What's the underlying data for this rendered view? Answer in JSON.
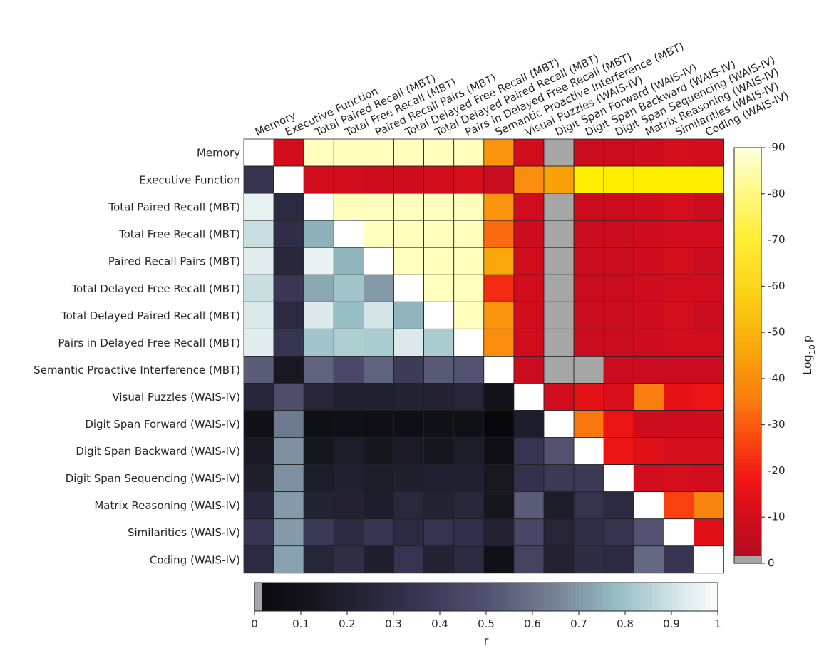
{
  "chart_data": {
    "type": "heatmap",
    "labels": [
      "Memory",
      "Executive Function",
      "Total Paired Recall (MBT)",
      "Total Free Recall (MBT)",
      "Paired Recall Pairs (MBT)",
      "Total Delayed Free Recall (MBT)",
      "Total Delayed Paired Recall (MBT)",
      "Pairs in Delayed Free Recall (MBT)",
      "Semantic Proactive Interference (MBT)",
      "Visual Puzzles (WAIS-IV)",
      "Digit Span Forward (WAIS-IV)",
      "Digit Span Backward (WAIS-IV)",
      "Digit Span Sequencing (WAIS-IV)",
      "Matrix Reasoning (WAIS-IV)",
      "Similarities (WAIS-IV)",
      "Coding (WAIS-IV)"
    ],
    "lower_triangle_r": [
      [
        null,
        null,
        null,
        null,
        null,
        null,
        null,
        null,
        null,
        null,
        null,
        null,
        null,
        null,
        null,
        null
      ],
      [
        0.33,
        null,
        null,
        null,
        null,
        null,
        null,
        null,
        null,
        null,
        null,
        null,
        null,
        null,
        null,
        null
      ],
      [
        0.95,
        0.27,
        null,
        null,
        null,
        null,
        null,
        null,
        null,
        null,
        null,
        null,
        null,
        null,
        null,
        null
      ],
      [
        0.88,
        0.3,
        0.75,
        null,
        null,
        null,
        null,
        null,
        null,
        null,
        null,
        null,
        null,
        null,
        null,
        null
      ],
      [
        0.93,
        0.25,
        0.95,
        0.76,
        null,
        null,
        null,
        null,
        null,
        null,
        null,
        null,
        null,
        null,
        null,
        null
      ],
      [
        0.88,
        0.36,
        0.73,
        0.8,
        0.7,
        null,
        null,
        null,
        null,
        null,
        null,
        null,
        null,
        null,
        null,
        null
      ],
      [
        0.92,
        0.27,
        0.92,
        0.78,
        0.9,
        0.76,
        null,
        null,
        null,
        null,
        null,
        null,
        null,
        null,
        null,
        null
      ],
      [
        0.93,
        0.34,
        0.8,
        0.83,
        0.82,
        0.92,
        0.82,
        null,
        null,
        null,
        null,
        null,
        null,
        null,
        null,
        null
      ],
      [
        0.53,
        0.14,
        0.55,
        0.45,
        0.55,
        0.38,
        0.52,
        0.5,
        null,
        null,
        null,
        null,
        null,
        null,
        null,
        null
      ],
      [
        0.24,
        0.48,
        0.23,
        0.2,
        0.2,
        0.22,
        0.21,
        0.23,
        0.09,
        null,
        null,
        null,
        null,
        null,
        null,
        null
      ],
      [
        0.08,
        0.62,
        0.06,
        0.07,
        0.05,
        0.06,
        0.07,
        0.07,
        0.0,
        0.18,
        null,
        null,
        null,
        null,
        null,
        null
      ],
      [
        0.15,
        0.68,
        0.12,
        0.17,
        0.12,
        0.16,
        0.12,
        0.17,
        0.05,
        0.34,
        0.5,
        null,
        null,
        null,
        null,
        null
      ],
      [
        0.19,
        0.68,
        0.17,
        0.2,
        0.17,
        0.19,
        0.2,
        0.2,
        0.13,
        0.32,
        0.37,
        0.37,
        null,
        null,
        null,
        null
      ],
      [
        0.25,
        0.7,
        0.22,
        0.21,
        0.18,
        0.26,
        0.22,
        0.25,
        0.12,
        0.53,
        0.17,
        0.33,
        0.27,
        null,
        null,
        null
      ],
      [
        0.35,
        0.7,
        0.37,
        0.28,
        0.34,
        0.27,
        0.33,
        0.31,
        0.21,
        0.44,
        0.23,
        0.3,
        0.33,
        0.5,
        null,
        null
      ],
      [
        0.27,
        0.72,
        0.24,
        0.3,
        0.19,
        0.34,
        0.22,
        0.28,
        0.07,
        0.42,
        0.21,
        0.29,
        0.27,
        0.57,
        0.35,
        null
      ]
    ],
    "upper_triangle_log10p": [
      [
        null,
        -10,
        -87,
        -87,
        -87,
        -87,
        -87,
        -87,
        -42,
        -10,
        0,
        -8,
        -8,
        -9,
        -11,
        -10
      ],
      [
        null,
        null,
        -10,
        -10,
        -9,
        -9,
        -10,
        -11,
        -8,
        -40,
        -45,
        -88,
        -88,
        -88,
        -88,
        -88
      ],
      [
        null,
        null,
        null,
        -87,
        -87,
        -87,
        -87,
        -87,
        -42,
        -10,
        0,
        -8,
        -8,
        -9,
        -11,
        -8
      ],
      [
        null,
        null,
        null,
        null,
        -87,
        -87,
        -87,
        -87,
        -33,
        -9,
        0,
        -8,
        -8,
        -9,
        -10,
        -10
      ],
      [
        null,
        null,
        null,
        null,
        null,
        -87,
        -87,
        -87,
        -47,
        -10,
        0,
        -8,
        -8,
        -9,
        -11,
        -8
      ],
      [
        null,
        null,
        null,
        null,
        null,
        null,
        -87,
        -87,
        -22,
        -10,
        0,
        -8,
        -8,
        -9,
        -10,
        -10
      ],
      [
        null,
        null,
        null,
        null,
        null,
        null,
        null,
        -87,
        -42,
        -10,
        0,
        -8,
        -8,
        -9,
        -11,
        -8
      ],
      [
        null,
        null,
        null,
        null,
        null,
        null,
        null,
        null,
        -40,
        -10,
        0,
        -8,
        -8,
        -9,
        -10,
        -10
      ],
      [
        null,
        null,
        null,
        null,
        null,
        null,
        null,
        null,
        null,
        -8,
        0,
        0,
        -8,
        -8,
        -8,
        -8
      ],
      [
        null,
        null,
        null,
        null,
        null,
        null,
        null,
        null,
        null,
        null,
        -10,
        -15,
        -12,
        -36,
        -16,
        -17
      ],
      [
        null,
        null,
        null,
        null,
        null,
        null,
        null,
        null,
        null,
        null,
        null,
        -35,
        -17,
        -9,
        -9,
        -9
      ],
      [
        null,
        null,
        null,
        null,
        null,
        null,
        null,
        null,
        null,
        null,
        null,
        null,
        -17,
        -14,
        -11,
        -11
      ],
      [
        null,
        null,
        null,
        null,
        null,
        null,
        null,
        null,
        null,
        null,
        null,
        null,
        null,
        -10,
        -11,
        -10
      ],
      [
        null,
        null,
        null,
        null,
        null,
        null,
        null,
        null,
        null,
        null,
        null,
        null,
        null,
        null,
        -26,
        -38
      ],
      [
        null,
        null,
        null,
        null,
        null,
        null,
        null,
        null,
        null,
        null,
        null,
        null,
        null,
        null,
        null,
        -14
      ],
      [
        null,
        null,
        null,
        null,
        null,
        null,
        null,
        null,
        null,
        null,
        null,
        null,
        null,
        null,
        null,
        null
      ]
    ],
    "colorbar_p": {
      "label": "Log",
      "label_sub": "10",
      "label_suffix": "p",
      "ticks": [
        "-90",
        "-80",
        "-70",
        "-60",
        "-50",
        "-40",
        "-30",
        "-20",
        "-10",
        "0"
      ],
      "range": [
        0,
        -90
      ]
    },
    "colorbar_r": {
      "label": "r",
      "ticks": [
        "0",
        "0.1",
        "0.2",
        "0.3",
        "0.4",
        "0.5",
        "0.6",
        "0.7",
        "0.8",
        "0.9",
        "1"
      ],
      "range": [
        0,
        1
      ]
    },
    "diagonal_color": "#ffffff",
    "nonsignificant_color": "#a6a6a6",
    "grid": true
  }
}
